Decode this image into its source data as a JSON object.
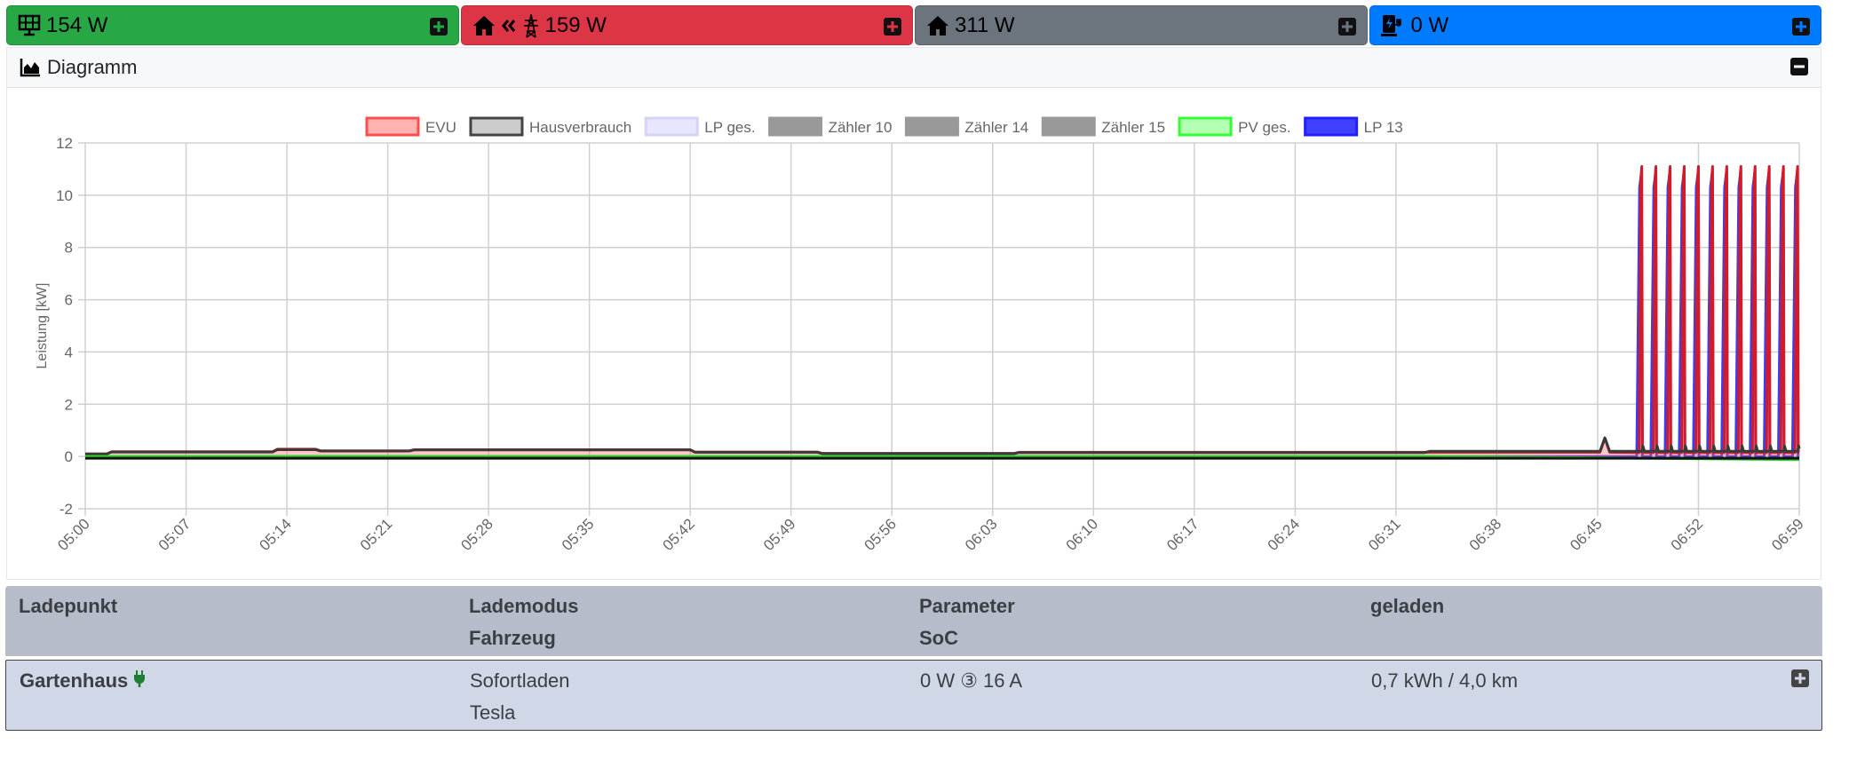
{
  "topbar": {
    "pv": {
      "value": "154 W",
      "color": "#28a745",
      "icon": "solar-panel-icon"
    },
    "grid": {
      "value": "159 W",
      "color": "#dc3545",
      "icons": [
        "house-icon",
        "double-chevron-left-icon",
        "power-tower-icon"
      ]
    },
    "house": {
      "value": "311 W",
      "color": "#6c757d",
      "icon": "house-icon"
    },
    "charging": {
      "value": "0 W",
      "color": "#007bff",
      "icon": "charging-station-icon"
    }
  },
  "diagram": {
    "title": "Diagramm",
    "icon": "chart-area-icon",
    "collapse_icon": "minus-square-icon"
  },
  "chart_data": {
    "type": "line",
    "ylabel": "Leistung [kW]",
    "ylim": [
      -2,
      12
    ],
    "yticks": [
      "12",
      "10",
      "8",
      "6",
      "4",
      "2",
      "0",
      "-2"
    ],
    "xlim": [
      "05:00",
      "06:59"
    ],
    "xticks": [
      "05:00",
      "05:07",
      "05:14",
      "05:21",
      "05:28",
      "05:35",
      "05:42",
      "05:49",
      "05:56",
      "06:03",
      "06:10",
      "06:17",
      "06:24",
      "06:31",
      "06:38",
      "06:45",
      "06:52",
      "06:59"
    ],
    "grid": true,
    "legend_position": "top",
    "legend": [
      {
        "name": "EVU",
        "fill": "#ffb3b3",
        "border": "#ff4d4d"
      },
      {
        "name": "Hausverbrauch",
        "fill": "#cccccc",
        "border": "#444444"
      },
      {
        "name": "LP ges.",
        "fill": "#e6e6ff",
        "border": "#d4d4f5"
      },
      {
        "name": "Zähler 10",
        "fill": "#999999",
        "border": "#999999"
      },
      {
        "name": "Zähler 14",
        "fill": "#999999",
        "border": "#999999"
      },
      {
        "name": "Zähler 15",
        "fill": "#999999",
        "border": "#999999"
      },
      {
        "name": "PV ges.",
        "fill": "#b3ffb3",
        "border": "#33ff33"
      },
      {
        "name": "LP 13",
        "fill": "#4040ff",
        "border": "#2020ff"
      }
    ],
    "series": [
      {
        "name": "LP 13",
        "stroke": "#3d3dee",
        "fill": "rgba(200,200,255,0.45)",
        "points": [
          [
            "05:00:00",
            0
          ],
          [
            "06:47:43",
            0
          ],
          [
            "06:47:55",
            10.3
          ],
          [
            "06:48:03",
            10.9
          ],
          [
            "06:48:06",
            0
          ],
          [
            "06:48:42",
            0
          ],
          [
            "06:48:54",
            10.3
          ],
          [
            "06:49:02",
            10.9
          ],
          [
            "06:49:05",
            0
          ],
          [
            "06:49:41",
            0
          ],
          [
            "06:49:53",
            10.3
          ],
          [
            "06:50:01",
            10.9
          ],
          [
            "06:50:04",
            0
          ],
          [
            "06:50:40",
            0
          ],
          [
            "06:50:52",
            10.3
          ],
          [
            "06:51:00",
            10.9
          ],
          [
            "06:51:03",
            0
          ],
          [
            "06:51:39",
            0
          ],
          [
            "06:51:51",
            10.3
          ],
          [
            "06:51:59",
            10.9
          ],
          [
            "06:52:02",
            0
          ],
          [
            "06:52:38",
            0
          ],
          [
            "06:52:50",
            10.3
          ],
          [
            "06:52:58",
            10.9
          ],
          [
            "06:53:01",
            0
          ],
          [
            "06:53:37",
            0
          ],
          [
            "06:53:49",
            10.3
          ],
          [
            "06:53:57",
            10.9
          ],
          [
            "06:54:00",
            0
          ],
          [
            "06:54:36",
            0
          ],
          [
            "06:54:48",
            10.3
          ],
          [
            "06:54:56",
            10.9
          ],
          [
            "06:54:59",
            0
          ],
          [
            "06:55:35",
            0
          ],
          [
            "06:55:47",
            10.3
          ],
          [
            "06:55:55",
            10.9
          ],
          [
            "06:55:58",
            0
          ],
          [
            "06:56:34",
            0
          ],
          [
            "06:56:46",
            10.3
          ],
          [
            "06:56:54",
            10.9
          ],
          [
            "06:56:57",
            0
          ],
          [
            "06:57:33",
            0
          ],
          [
            "06:57:45",
            10.3
          ],
          [
            "06:57:53",
            10.9
          ],
          [
            "06:57:56",
            0
          ],
          [
            "06:58:32",
            0
          ],
          [
            "06:58:44",
            10.3
          ],
          [
            "06:58:52",
            10.9
          ],
          [
            "06:58:55",
            0
          ],
          [
            "06:59:00",
            0
          ]
        ]
      },
      {
        "name": "EVU",
        "stroke": "#d01c2a",
        "fill": "rgba(255,100,100,0.35)",
        "points": [
          [
            "05:00:00",
            0.1
          ],
          [
            "05:01:30",
            0.1
          ],
          [
            "05:01:50",
            0.18
          ],
          [
            "05:13:00",
            0.18
          ],
          [
            "05:13:20",
            0.28
          ],
          [
            "05:16:00",
            0.28
          ],
          [
            "05:16:20",
            0.22
          ],
          [
            "05:22:30",
            0.22
          ],
          [
            "05:22:50",
            0.26
          ],
          [
            "05:42:00",
            0.26
          ],
          [
            "05:42:20",
            0.17
          ],
          [
            "05:50:50",
            0.17
          ],
          [
            "05:51:10",
            0.12
          ],
          [
            "06:04:30",
            0.12
          ],
          [
            "06:04:50",
            0.16
          ],
          [
            "06:45:10",
            0.16
          ],
          [
            "06:45:30",
            0.7
          ],
          [
            "06:45:50",
            0.16
          ],
          [
            "06:47:53",
            0.15
          ],
          [
            "06:48:00",
            10.6
          ],
          [
            "06:48:04",
            11.1
          ],
          [
            "06:48:07",
            0.15
          ],
          [
            "06:48:52",
            0.15
          ],
          [
            "06:48:59",
            10.6
          ],
          [
            "06:49:03",
            11.1
          ],
          [
            "06:49:06",
            0.15
          ],
          [
            "06:49:51",
            0.15
          ],
          [
            "06:49:58",
            10.6
          ],
          [
            "06:50:02",
            11.1
          ],
          [
            "06:50:05",
            0.15
          ],
          [
            "06:50:50",
            0.15
          ],
          [
            "06:50:57",
            10.6
          ],
          [
            "06:51:01",
            11.1
          ],
          [
            "06:51:04",
            0.15
          ],
          [
            "06:51:49",
            0.15
          ],
          [
            "06:51:56",
            10.6
          ],
          [
            "06:52:00",
            11.1
          ],
          [
            "06:52:03",
            0.15
          ],
          [
            "06:52:48",
            0.15
          ],
          [
            "06:52:55",
            10.6
          ],
          [
            "06:52:59",
            11.1
          ],
          [
            "06:53:02",
            0.15
          ],
          [
            "06:53:47",
            0.15
          ],
          [
            "06:53:54",
            10.6
          ],
          [
            "06:53:58",
            11.1
          ],
          [
            "06:54:01",
            0.15
          ],
          [
            "06:54:46",
            0.15
          ],
          [
            "06:54:53",
            10.6
          ],
          [
            "06:54:57",
            11.1
          ],
          [
            "06:55:00",
            0.15
          ],
          [
            "06:55:45",
            0.15
          ],
          [
            "06:55:52",
            10.6
          ],
          [
            "06:55:56",
            11.1
          ],
          [
            "06:55:59",
            0.15
          ],
          [
            "06:56:44",
            0.15
          ],
          [
            "06:56:51",
            10.6
          ],
          [
            "06:56:55",
            11.1
          ],
          [
            "06:56:58",
            0.15
          ],
          [
            "06:57:43",
            0.15
          ],
          [
            "06:57:50",
            10.6
          ],
          [
            "06:57:54",
            11.1
          ],
          [
            "06:57:57",
            0.15
          ],
          [
            "06:58:42",
            0.15
          ],
          [
            "06:58:49",
            10.6
          ],
          [
            "06:58:53",
            11.1
          ],
          [
            "06:58:56",
            0.15
          ],
          [
            "06:59:00",
            0.15
          ]
        ]
      },
      {
        "name": "Hausverbrauch",
        "stroke": "#3a3a3a",
        "fill": "none",
        "points": [
          [
            "05:00:00",
            0.1
          ],
          [
            "05:01:30",
            0.1
          ],
          [
            "05:01:50",
            0.17
          ],
          [
            "05:13:00",
            0.17
          ],
          [
            "05:13:20",
            0.26
          ],
          [
            "05:16:00",
            0.26
          ],
          [
            "05:16:20",
            0.21
          ],
          [
            "05:22:30",
            0.21
          ],
          [
            "05:22:50",
            0.25
          ],
          [
            "05:42:00",
            0.25
          ],
          [
            "05:42:20",
            0.16
          ],
          [
            "05:50:50",
            0.16
          ],
          [
            "05:51:10",
            0.11
          ],
          [
            "06:04:30",
            0.11
          ],
          [
            "06:04:50",
            0.15
          ],
          [
            "06:33:00",
            0.15
          ],
          [
            "06:33:20",
            0.2
          ],
          [
            "06:45:10",
            0.2
          ],
          [
            "06:45:30",
            0.72
          ],
          [
            "06:45:50",
            0.2
          ],
          [
            "06:48:05",
            0.2
          ],
          [
            "06:48:09",
            0.4
          ],
          [
            "06:48:15",
            0.2
          ],
          [
            "06:49:04",
            0.2
          ],
          [
            "06:49:08",
            0.4
          ],
          [
            "06:49:14",
            0.2
          ],
          [
            "06:50:03",
            0.2
          ],
          [
            "06:50:07",
            0.4
          ],
          [
            "06:50:13",
            0.2
          ],
          [
            "06:51:02",
            0.2
          ],
          [
            "06:51:06",
            0.4
          ],
          [
            "06:51:12",
            0.2
          ],
          [
            "06:52:01",
            0.2
          ],
          [
            "06:52:05",
            0.4
          ],
          [
            "06:52:11",
            0.2
          ],
          [
            "06:53:00",
            0.2
          ],
          [
            "06:53:04",
            0.4
          ],
          [
            "06:53:10",
            0.2
          ],
          [
            "06:53:59",
            0.2
          ],
          [
            "06:54:03",
            0.4
          ],
          [
            "06:54:09",
            0.2
          ],
          [
            "06:54:58",
            0.2
          ],
          [
            "06:55:02",
            0.4
          ],
          [
            "06:55:08",
            0.2
          ],
          [
            "06:55:57",
            0.2
          ],
          [
            "06:56:01",
            0.4
          ],
          [
            "06:56:07",
            0.2
          ],
          [
            "06:56:56",
            0.2
          ],
          [
            "06:57:00",
            0.4
          ],
          [
            "06:57:06",
            0.2
          ],
          [
            "06:57:55",
            0.2
          ],
          [
            "06:57:59",
            0.4
          ],
          [
            "06:58:05",
            0.2
          ],
          [
            "06:58:54",
            0.2
          ],
          [
            "06:58:58",
            0.4
          ],
          [
            "06:59:00",
            0.3
          ]
        ]
      },
      {
        "name": "PV ges.",
        "stroke": "#22dd22",
        "fill": "none",
        "points": [
          [
            "05:00:00",
            0
          ],
          [
            "06:34:00",
            0
          ],
          [
            "06:59:00",
            -0.12
          ]
        ]
      }
    ]
  },
  "table": {
    "headers": {
      "col1": "Ladepunkt",
      "col2a": "Lademodus",
      "col2b": "Fahrzeug",
      "col3a": "Parameter",
      "col3b": "SoC",
      "col4": "geladen"
    },
    "rows": [
      {
        "ladepunkt": "Gartenhaus",
        "plug_icon": "plug-icon",
        "plug_color": "#1e7e34",
        "lademodus": "Sofortladen",
        "fahrzeug": "Tesla",
        "parameter": "0 W ③ 16 A",
        "geladen": "0,7 kWh / 4,0 km"
      }
    ]
  }
}
